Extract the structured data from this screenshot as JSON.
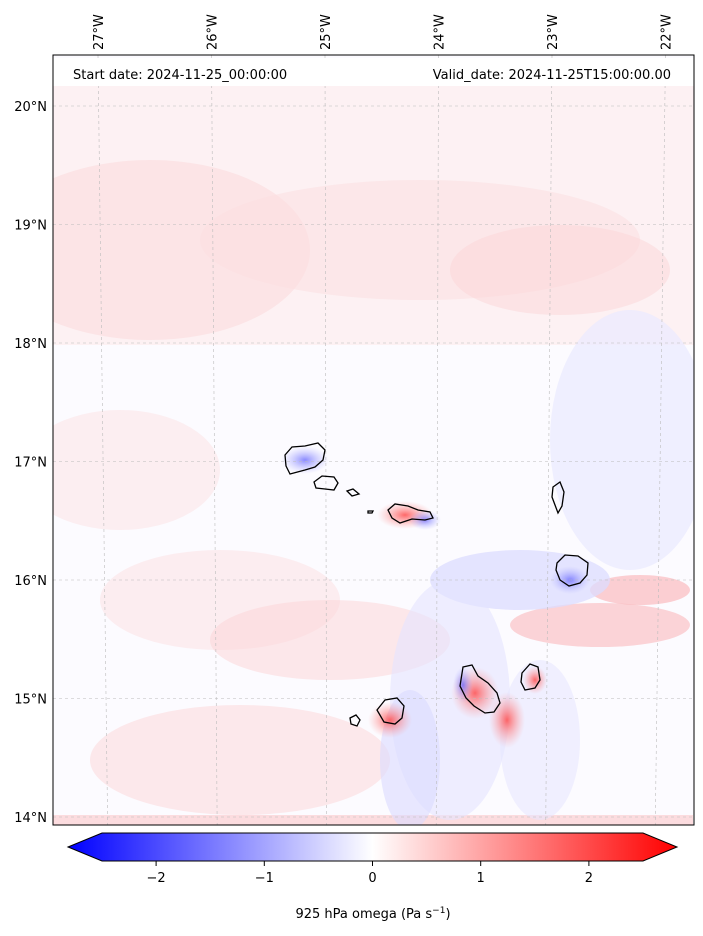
{
  "header": {
    "start_date": "Start date: 2024-11-25_00:00:00",
    "valid_date": "Valid_date: 2024-11-25T15:00:00.00"
  },
  "map": {
    "lon_ticks": [
      {
        "label": "27°W",
        "value": -27
      },
      {
        "label": "26°W",
        "value": -26
      },
      {
        "label": "25°W",
        "value": -25
      },
      {
        "label": "24°W",
        "value": -24
      },
      {
        "label": "23°W",
        "value": -23
      },
      {
        "label": "22°W",
        "value": -22
      }
    ],
    "lat_ticks": [
      {
        "label": "20°N",
        "value": 20
      },
      {
        "label": "19°N",
        "value": 19
      },
      {
        "label": "18°N",
        "value": 18
      },
      {
        "label": "17°N",
        "value": 17
      },
      {
        "label": "16°N",
        "value": 16
      },
      {
        "label": "15°N",
        "value": 15
      },
      {
        "label": "14°N",
        "value": 14
      }
    ]
  },
  "colorbar": {
    "label": "925 hPa omega (Pa s",
    "label_exp": "−1",
    "label_close": ")",
    "range": [
      -2.5,
      2.5
    ],
    "ticks": [
      {
        "label": "−2",
        "value": -2
      },
      {
        "label": "−1",
        "value": -1
      },
      {
        "label": "0",
        "value": 0
      },
      {
        "label": "1",
        "value": 1
      },
      {
        "label": "2",
        "value": 2
      }
    ],
    "color_min": "#0000ff",
    "color_mid": "#ffffff",
    "color_max": "#ff0000"
  }
}
